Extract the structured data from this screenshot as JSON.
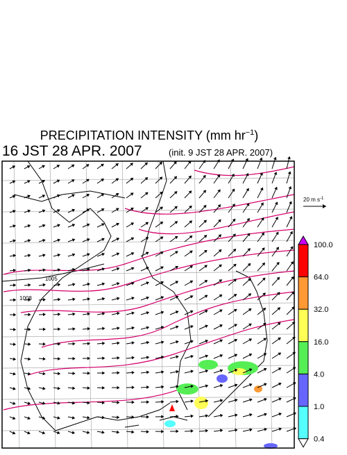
{
  "title": {
    "text": "PRECIPITATION INTENSITY (mm hr",
    "superscript": "−1",
    "suffix": ")"
  },
  "time": "16 JST 28 APR. 2007",
  "init": "(init. 9 JST 28 APR. 2007)",
  "wind_scale": {
    "label": "20 m s",
    "superscript": "-1"
  },
  "colorbar": {
    "labels": [
      "100.0",
      "64.0",
      "32.0",
      "16.0",
      "4.0",
      "1.0",
      "0.4"
    ],
    "colors": [
      "#cc00ff",
      "#ff0000",
      "#ff9933",
      "#ffff55",
      "#55ee55",
      "#6666ff",
      "#55ffff",
      "#ffffff"
    ]
  },
  "contour_labels": [
    "1005",
    "1008"
  ]
}
